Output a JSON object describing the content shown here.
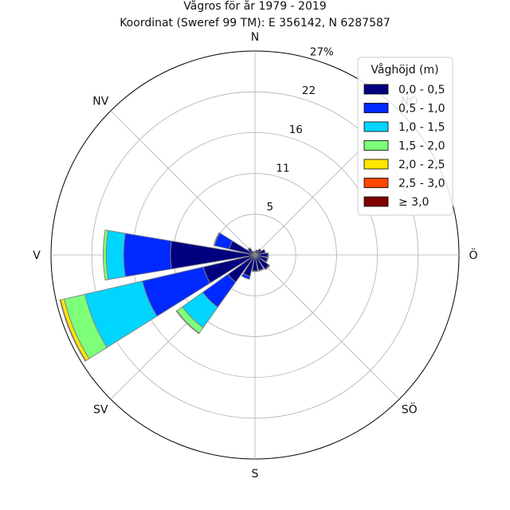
{
  "chart_data": {
    "type": "windrose",
    "title": "Vågros för år 1979 - 2019",
    "subtitle": "Koordinat (Sweref 99 TM): E 356142, N 6287587",
    "directions": [
      "N",
      "NO",
      "Ö",
      "SÖ",
      "S",
      "SV",
      "V",
      "NV"
    ],
    "radial_ticks": [
      "5",
      "11",
      "16",
      "22",
      "27%"
    ],
    "radial_values": [
      5.4,
      10.8,
      16.2,
      21.6,
      27.0
    ],
    "rmax": 27.0,
    "grid": true,
    "legend": {
      "title": "Våghöjd (m)",
      "position": "top-right",
      "labels": [
        "0,0 - 0,5",
        "0,5 - 1,0",
        "1,0 - 1,5",
        "1,5 - 2,0",
        "2,0 - 2,5",
        "2,5 - 3,0",
        "≥ 3,0"
      ],
      "colors": [
        "#00007f",
        "#0029ff",
        "#00d5ff",
        "#7dff7a",
        "#ffe600",
        "#ff4800",
        "#7f0000"
      ]
    },
    "sectors": [
      {
        "angle": 0.0,
        "values": [
          0.5,
          0.0,
          0.0,
          0.0,
          0.0,
          0.0,
          0.0
        ]
      },
      {
        "angle": 22.5,
        "values": [
          0.7,
          0.0,
          0.0,
          0.0,
          0.0,
          0.0,
          0.0
        ]
      },
      {
        "angle": 45.0,
        "values": [
          1.0,
          0.0,
          0.0,
          0.0,
          0.0,
          0.0,
          0.0
        ]
      },
      {
        "angle": 67.5,
        "values": [
          1.4,
          0.0,
          0.0,
          0.0,
          0.0,
          0.0,
          0.0
        ]
      },
      {
        "angle": 90.0,
        "values": [
          1.7,
          0.1,
          0.0,
          0.0,
          0.0,
          0.0,
          0.0
        ]
      },
      {
        "angle": 112.5,
        "values": [
          1.7,
          0.1,
          0.0,
          0.0,
          0.0,
          0.0,
          0.0
        ]
      },
      {
        "angle": 135.0,
        "values": [
          2.3,
          0.1,
          0.0,
          0.0,
          0.0,
          0.0,
          0.0
        ]
      },
      {
        "angle": 157.5,
        "values": [
          2.1,
          0.1,
          0.0,
          0.0,
          0.0,
          0.0,
          0.0
        ]
      },
      {
        "angle": 180.0,
        "values": [
          2.1,
          0.1,
          0.0,
          0.0,
          0.0,
          0.0,
          0.0
        ]
      },
      {
        "angle": 202.5,
        "values": [
          2.9,
          0.4,
          0.0,
          0.0,
          0.0,
          0.0,
          0.0
        ]
      },
      {
        "angle": 225.0,
        "values": [
          4.4,
          4.1,
          3.3,
          0.9,
          0.1,
          0.0,
          0.0
        ]
      },
      {
        "angle": 247.5,
        "values": [
          7.0,
          8.3,
          7.8,
          2.8,
          0.5,
          0.1,
          0.0
        ]
      },
      {
        "angle": 270.0,
        "values": [
          11.2,
          6.2,
          2.3,
          0.4,
          0.0,
          0.0,
          0.0
        ]
      },
      {
        "angle": 292.5,
        "values": [
          3.5,
          2.0,
          0.1,
          0.0,
          0.0,
          0.0,
          0.0
        ]
      },
      {
        "angle": 315.0,
        "values": [
          1.1,
          0.1,
          0.0,
          0.0,
          0.0,
          0.0,
          0.0
        ]
      },
      {
        "angle": 337.5,
        "values": [
          0.5,
          0.0,
          0.0,
          0.0,
          0.0,
          0.0,
          0.0
        ]
      }
    ]
  }
}
